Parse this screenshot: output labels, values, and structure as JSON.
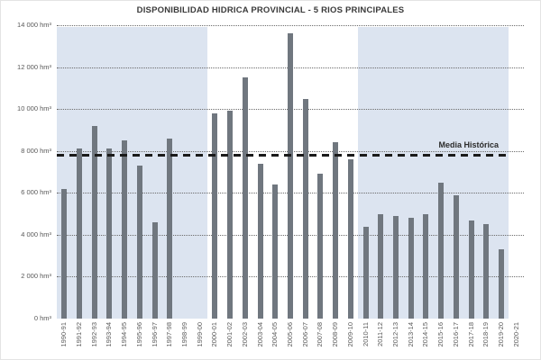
{
  "chart_data": {
    "type": "bar",
    "title": "DISPONIBILIDAD HIDRICA PROVINCIAL - 5 RIOS PRINCIPALES",
    "categories": [
      "1990-91",
      "1991-92",
      "1992-93",
      "1993-94",
      "1994-95",
      "1995-96",
      "1996-97",
      "1997-98",
      "1998-99",
      "1999-00",
      "2000-01",
      "2001-02",
      "2002-03",
      "2003-04",
      "2004-05",
      "2005-06",
      "2006-07",
      "2007-08",
      "2008-09",
      "2009-10",
      "2010-11",
      "2011-12",
      "2012-13",
      "2013-14",
      "2014-15",
      "2015-16",
      "2016-17",
      "2017-18",
      "2018-19",
      "2019-20",
      "2020-21"
    ],
    "values": [
      6200,
      8100,
      9200,
      8100,
      8500,
      7300,
      4600,
      8600,
      null,
      null,
      9800,
      9900,
      11500,
      7400,
      6400,
      13600,
      10500,
      6900,
      8400,
      7600,
      4400,
      5000,
      4900,
      4800,
      5000,
      6500,
      5900,
      4700,
      4500,
      3300,
      null
    ],
    "unit": "hm³",
    "ylim": [
      0,
      14000
    ],
    "ytick_step": 2000,
    "ytick_labels": [
      "0 hm³",
      "2 000 hm³",
      "4 000 hm³",
      "6 000 hm³",
      "8 000 hm³",
      "10 000 hm³",
      "12 000 hm³",
      "14 000 hm³"
    ],
    "grid": "dotted horizontal",
    "legend": "none",
    "reference_line": {
      "label": "Media Histórica",
      "value": 7800,
      "style": "thick black dashed"
    },
    "shaded_bands": [
      {
        "from": "1990-91",
        "to": "1999-00",
        "color": "#dce4f0"
      },
      {
        "from": "2010-11",
        "to": "2019-20",
        "color": "#dce4f0"
      }
    ],
    "bar_color": "#70777f",
    "background_color": "#ffffff"
  }
}
